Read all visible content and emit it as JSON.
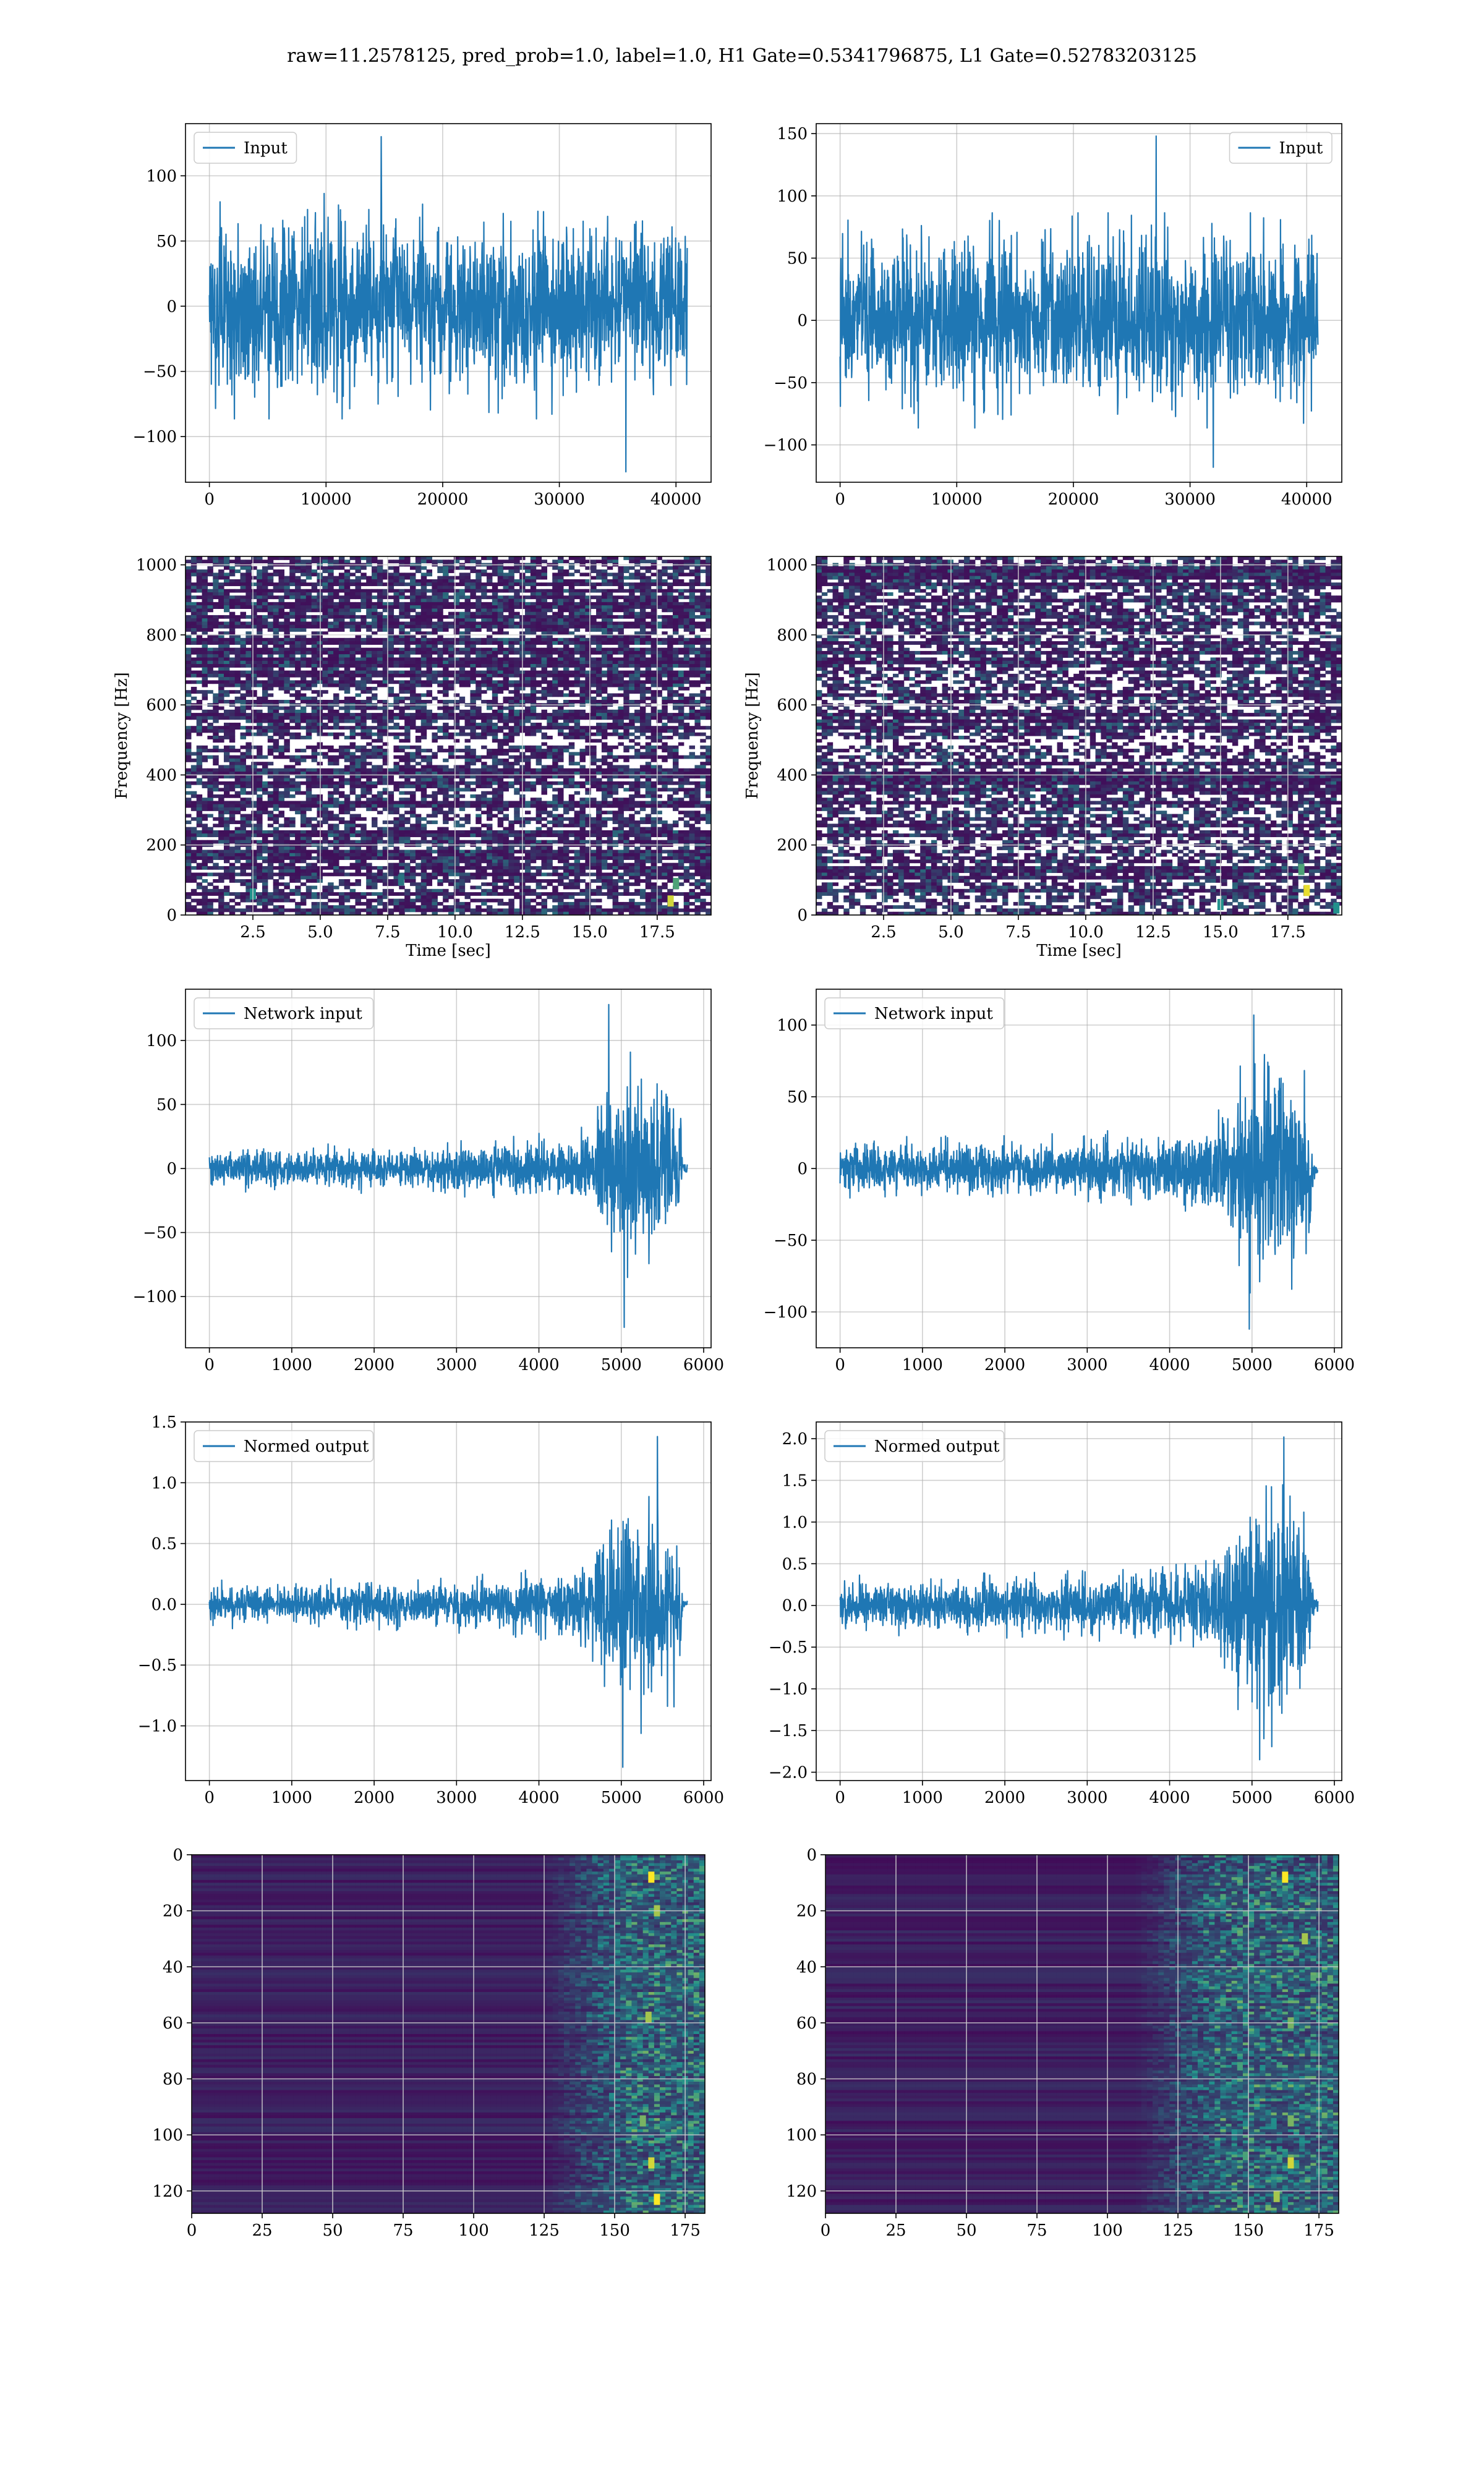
{
  "figure": {
    "suptitle": "raw=11.2578125, pred_prob=1.0, label=1.0, H1 Gate=0.5341796875, L1 Gate=0.52783203125"
  },
  "colors": {
    "line": "#1f77b4",
    "heatmap_low": "#440154",
    "heatmap_mid": "#21918c",
    "heatmap_high": "#fde725",
    "grid": "#b0b0b0"
  },
  "chart_data": [
    {
      "id": "input-h1",
      "type": "line",
      "legend": "Input",
      "legend_loc": "upper-left",
      "xlim": [
        -2048,
        43008
      ],
      "ylim": [
        -135,
        140
      ],
      "xticks": [
        0,
        10000,
        20000,
        30000,
        40000
      ],
      "yticks": [
        -100,
        -50,
        0,
        50,
        100
      ],
      "xticklabels": [
        "0",
        "10000",
        "20000",
        "30000",
        "40000"
      ],
      "yticklabels": [
        "−100",
        "−50",
        "0",
        "50",
        "100"
      ],
      "xlabel": "",
      "ylabel": "",
      "signal": {
        "x_start": 0,
        "x_end": 40960,
        "env": [
          [
            0,
            48
          ],
          [
            1,
            48
          ]
        ],
        "peak_max": 130,
        "peak_min": -127
      }
    },
    {
      "id": "input-l1",
      "type": "line",
      "legend": "Input",
      "legend_loc": "upper-right",
      "xlim": [
        -2048,
        43008
      ],
      "ylim": [
        -130,
        158
      ],
      "xticks": [
        0,
        10000,
        20000,
        30000,
        40000
      ],
      "yticks": [
        -100,
        -50,
        0,
        50,
        100,
        150
      ],
      "xticklabels": [
        "0",
        "10000",
        "20000",
        "30000",
        "40000"
      ],
      "yticklabels": [
        "−100",
        "−50",
        "0",
        "50",
        "100",
        "150"
      ],
      "xlabel": "",
      "ylabel": "",
      "signal": {
        "x_start": 0,
        "x_end": 40960,
        "env": [
          [
            0,
            48
          ],
          [
            1,
            48
          ]
        ],
        "peak_max": 148,
        "peak_min": -118
      }
    },
    {
      "id": "spec-h1",
      "type": "heatmap",
      "legend": "",
      "xlim": [
        0,
        19.5
      ],
      "ylim": [
        0,
        1024
      ],
      "xticks": [
        2.5,
        5.0,
        7.5,
        10.0,
        12.5,
        15.0,
        17.5
      ],
      "yticks": [
        0,
        200,
        400,
        600,
        800,
        1000
      ],
      "xticklabels": [
        "2.5",
        "5.0",
        "7.5",
        "10.0",
        "12.5",
        "15.0",
        "17.5"
      ],
      "yticklabels": [
        "0",
        "200",
        "400",
        "600",
        "800",
        "1000"
      ],
      "xlabel": "Time [sec]",
      "ylabel": "Frequency [Hz]",
      "hotspots": [
        [
          18.0,
          40,
          0.9
        ],
        [
          18.2,
          90,
          0.6
        ],
        [
          2.5,
          60,
          0.5
        ],
        [
          8.0,
          100,
          0.4
        ]
      ]
    },
    {
      "id": "spec-l1",
      "type": "heatmap",
      "legend": "",
      "xlim": [
        0,
        19.5
      ],
      "ylim": [
        0,
        1024
      ],
      "xticks": [
        2.5,
        5.0,
        7.5,
        10.0,
        12.5,
        15.0,
        17.5
      ],
      "yticks": [
        0,
        200,
        400,
        600,
        800,
        1000
      ],
      "xticklabels": [
        "2.5",
        "5.0",
        "7.5",
        "10.0",
        "12.5",
        "15.0",
        "17.5"
      ],
      "yticklabels": [
        "0",
        "200",
        "400",
        "600",
        "800",
        "1000"
      ],
      "xlabel": "Time [sec]",
      "ylabel": "Frequency [Hz]",
      "hotspots": [
        [
          18.2,
          70,
          0.95
        ],
        [
          18.0,
          130,
          0.6
        ],
        [
          15.0,
          30,
          0.5
        ],
        [
          19.3,
          20,
          0.5
        ]
      ]
    },
    {
      "id": "net-h1",
      "type": "line",
      "legend": "Network input",
      "legend_loc": "upper-left",
      "xlim": [
        -290,
        6090
      ],
      "ylim": [
        -140,
        140
      ],
      "xticks": [
        0,
        1000,
        2000,
        3000,
        4000,
        5000,
        6000
      ],
      "yticks": [
        -100,
        -50,
        0,
        50,
        100
      ],
      "xticklabels": [
        "0",
        "1000",
        "2000",
        "3000",
        "4000",
        "5000",
        "6000"
      ],
      "yticklabels": [
        "−100",
        "−50",
        "0",
        "50",
        "100"
      ],
      "xlabel": "",
      "ylabel": "",
      "signal": {
        "x_start": 0,
        "x_end": 5800,
        "env": [
          [
            0,
            10
          ],
          [
            0.4,
            11
          ],
          [
            0.6,
            13
          ],
          [
            0.72,
            16
          ],
          [
            0.8,
            22
          ],
          [
            0.82,
            38
          ],
          [
            0.9,
            55
          ],
          [
            0.955,
            45
          ],
          [
            0.985,
            40
          ],
          [
            0.99,
            3
          ],
          [
            1,
            3
          ]
        ],
        "peak_max": 128,
        "peak_min": -124
      }
    },
    {
      "id": "net-l1",
      "type": "line",
      "legend": "Network input",
      "legend_loc": "upper-left",
      "xlim": [
        -290,
        6090
      ],
      "ylim": [
        -125,
        125
      ],
      "xticks": [
        0,
        1000,
        2000,
        3000,
        4000,
        5000,
        6000
      ],
      "yticks": [
        -100,
        -50,
        0,
        50,
        100
      ],
      "xticklabels": [
        "0",
        "1000",
        "2000",
        "3000",
        "4000",
        "5000",
        "6000"
      ],
      "yticklabels": [
        "−100",
        "−50",
        "0",
        "50",
        "100"
      ],
      "xlabel": "",
      "ylabel": "",
      "signal": {
        "x_start": 0,
        "x_end": 5800,
        "env": [
          [
            0,
            12
          ],
          [
            0.4,
            13
          ],
          [
            0.6,
            15
          ],
          [
            0.72,
            20
          ],
          [
            0.8,
            26
          ],
          [
            0.82,
            42
          ],
          [
            0.9,
            55
          ],
          [
            0.955,
            45
          ],
          [
            0.985,
            40
          ],
          [
            0.99,
            4
          ],
          [
            1,
            4
          ]
        ],
        "peak_max": 107,
        "peak_min": -112
      }
    },
    {
      "id": "norm-h1",
      "type": "line",
      "legend": "Normed output",
      "legend_loc": "upper-left",
      "xlim": [
        -290,
        6090
      ],
      "ylim": [
        -1.45,
        1.5
      ],
      "xticks": [
        0,
        1000,
        2000,
        3000,
        4000,
        5000,
        6000
      ],
      "yticks": [
        -1.0,
        -0.5,
        0.0,
        0.5,
        1.0,
        1.5
      ],
      "xticklabels": [
        "0",
        "1000",
        "2000",
        "3000",
        "4000",
        "5000",
        "6000"
      ],
      "yticklabels": [
        "−1.0",
        "−0.5",
        "0.0",
        "0.5",
        "1.0",
        "1.5"
      ],
      "xlabel": "",
      "ylabel": "",
      "signal": {
        "x_start": 0,
        "x_end": 5800,
        "env": [
          [
            0,
            0.11
          ],
          [
            0.4,
            0.12
          ],
          [
            0.6,
            0.14
          ],
          [
            0.72,
            0.17
          ],
          [
            0.8,
            0.24
          ],
          [
            0.82,
            0.42
          ],
          [
            0.9,
            0.6
          ],
          [
            0.955,
            0.5
          ],
          [
            0.985,
            0.45
          ],
          [
            0.99,
            0.03
          ],
          [
            1,
            0.03
          ]
        ],
        "peak_max": 1.38,
        "peak_min": -1.34
      }
    },
    {
      "id": "norm-l1",
      "type": "line",
      "legend": "Normed output",
      "legend_loc": "upper-left",
      "xlim": [
        -290,
        6090
      ],
      "ylim": [
        -2.1,
        2.2
      ],
      "xticks": [
        0,
        1000,
        2000,
        3000,
        4000,
        5000,
        6000
      ],
      "yticks": [
        -2.0,
        -1.5,
        -1.0,
        -0.5,
        0.0,
        0.5,
        1.0,
        1.5,
        2.0
      ],
      "xticklabels": [
        "0",
        "1000",
        "2000",
        "3000",
        "4000",
        "5000",
        "6000"
      ],
      "yticklabels": [
        "−2.0",
        "−1.5",
        "−1.0",
        "−0.5",
        "0.0",
        "0.5",
        "1.0",
        "1.5",
        "2.0"
      ],
      "xlabel": "",
      "ylabel": "",
      "signal": {
        "x_start": 0,
        "x_end": 5800,
        "env": [
          [
            0,
            0.2
          ],
          [
            0.4,
            0.22
          ],
          [
            0.6,
            0.25
          ],
          [
            0.72,
            0.32
          ],
          [
            0.8,
            0.45
          ],
          [
            0.82,
            0.75
          ],
          [
            0.9,
            0.95
          ],
          [
            0.955,
            0.8
          ],
          [
            0.985,
            0.7
          ],
          [
            0.99,
            0.08
          ],
          [
            1,
            0.08
          ]
        ],
        "peak_max": 2.02,
        "peak_min": -1.85
      }
    },
    {
      "id": "feat-h1",
      "type": "heatmap",
      "legend": "",
      "xlim": [
        0,
        182
      ],
      "ylim": [
        128,
        0
      ],
      "xticks": [
        0,
        25,
        50,
        75,
        100,
        125,
        150,
        175
      ],
      "yticks": [
        0,
        20,
        40,
        60,
        80,
        100,
        120
      ],
      "xticklabels": [
        "0",
        "25",
        "50",
        "75",
        "100",
        "125",
        "150",
        "175"
      ],
      "yticklabels": [
        "0",
        "20",
        "40",
        "60",
        "80",
        "100",
        "120"
      ],
      "xlabel": "",
      "ylabel": "",
      "active_from": 125,
      "hotspots": [
        [
          163,
          8,
          1.0
        ],
        [
          165,
          20,
          0.8
        ],
        [
          162,
          58,
          0.8
        ],
        [
          160,
          95,
          0.7
        ],
        [
          163,
          110,
          0.9
        ],
        [
          165,
          123,
          1.0
        ]
      ]
    },
    {
      "id": "feat-l1",
      "type": "heatmap",
      "legend": "",
      "xlim": [
        0,
        182
      ],
      "ylim": [
        128,
        0
      ],
      "xticks": [
        0,
        25,
        50,
        75,
        100,
        125,
        150,
        175
      ],
      "yticks": [
        0,
        20,
        40,
        60,
        80,
        100,
        120
      ],
      "xticklabels": [
        "0",
        "25",
        "50",
        "75",
        "100",
        "125",
        "150",
        "175"
      ],
      "yticklabels": [
        "0",
        "20",
        "40",
        "60",
        "80",
        "100",
        "120"
      ],
      "xlabel": "",
      "ylabel": "",
      "active_from": 110,
      "hotspots": [
        [
          163,
          8,
          1.0
        ],
        [
          170,
          30,
          0.8
        ],
        [
          165,
          60,
          0.7
        ],
        [
          165,
          95,
          0.7
        ],
        [
          165,
          110,
          0.9
        ],
        [
          160,
          122,
          0.8
        ]
      ]
    }
  ]
}
